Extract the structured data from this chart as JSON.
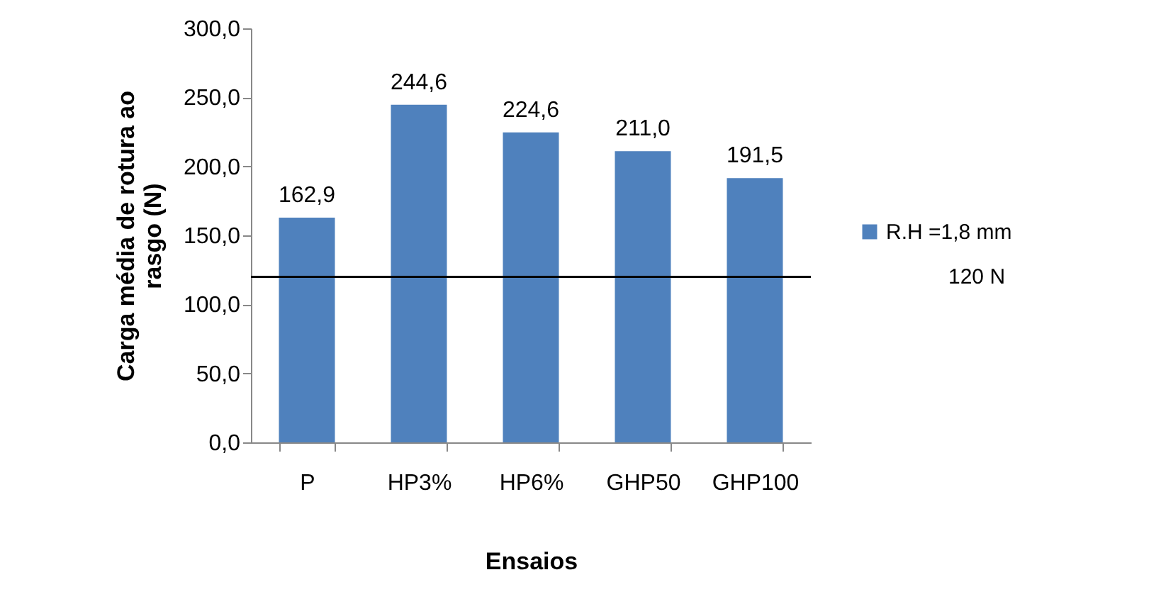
{
  "chart_data": {
    "type": "bar",
    "xlabel": "Ensaios",
    "ylabel": "Carga média de rotura ao rasgo (N)",
    "categories": [
      "P",
      "HP3%",
      "HP6%",
      "GHP50",
      "GHP100"
    ],
    "series": [
      {
        "name": "R.H =1,8 mm",
        "color": "#4f81bd",
        "values": [
          162.9,
          244.6,
          224.6,
          211.0,
          191.5
        ],
        "value_labels": [
          "162,9",
          "244,6",
          "224,6",
          "211,0",
          "191,5"
        ]
      }
    ],
    "ylim": [
      0,
      300
    ],
    "yticks": [
      {
        "value": 0,
        "label": "0,0"
      },
      {
        "value": 50,
        "label": "50,0"
      },
      {
        "value": 100,
        "label": "100,0"
      },
      {
        "value": 150,
        "label": "150,0"
      },
      {
        "value": 200,
        "label": "200,0"
      },
      {
        "value": 250,
        "label": "250,0"
      },
      {
        "value": 300,
        "label": "300,0"
      }
    ],
    "ref_lines": [
      {
        "axis": "y",
        "value": 120,
        "label": "120 N",
        "color": "#000000"
      }
    ],
    "grid": false,
    "legend": "right"
  }
}
